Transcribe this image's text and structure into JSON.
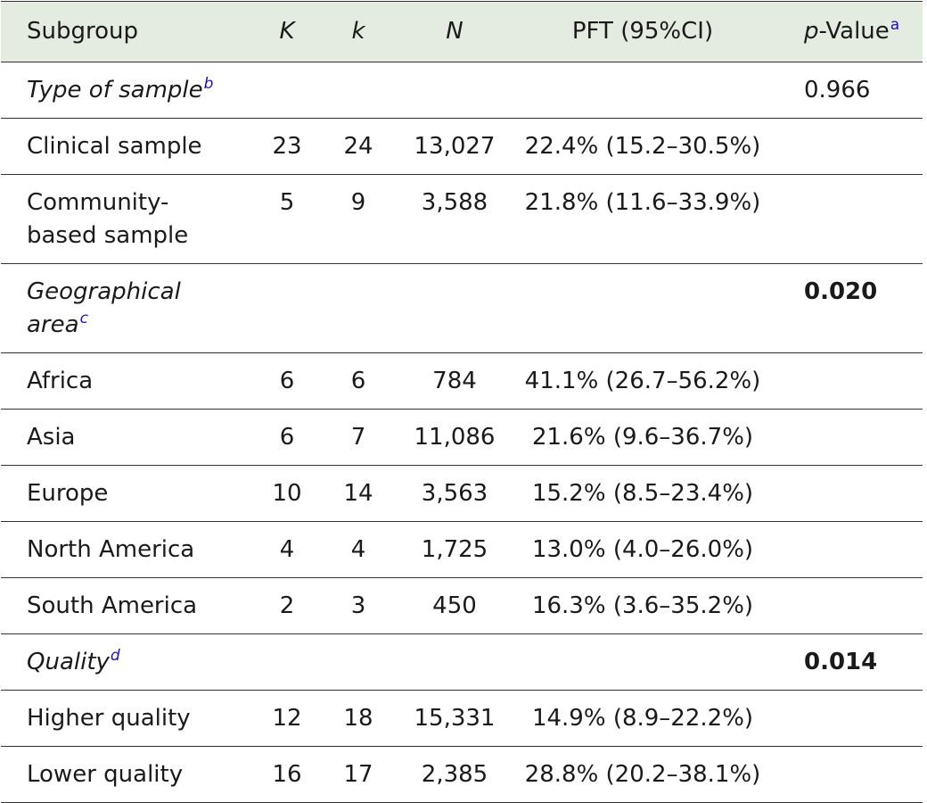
{
  "headers": {
    "subgroup": "Subgroup",
    "K": "K",
    "k": "k",
    "N": "N",
    "pft": "PFT (95%CI)",
    "p_italic": "p",
    "p_rest": "-Value",
    "p_sup": "a"
  },
  "sections": [
    {
      "title": "Type of sample",
      "sup": "b",
      "p_value": "0.966",
      "p_bold": false,
      "rows": [
        {
          "label": "Clinical sample",
          "K": "23",
          "k": "24",
          "N": "13,027",
          "pft": "22.4% (15.2–30.5%)"
        },
        {
          "label": "Community-based sample",
          "K": "5",
          "k": "9",
          "N": "3,588",
          "pft": "21.8% (11.6–33.9%)"
        }
      ]
    },
    {
      "title": "Geographical area",
      "sup": "c",
      "p_value": "0.020",
      "p_bold": true,
      "rows": [
        {
          "label": "Africa",
          "K": "6",
          "k": "6",
          "N": "784",
          "pft": "41.1% (26.7–56.2%)"
        },
        {
          "label": "Asia",
          "K": "6",
          "k": "7",
          "N": "11,086",
          "pft": "21.6% (9.6–36.7%)"
        },
        {
          "label": "Europe",
          "K": "10",
          "k": "14",
          "N": "3,563",
          "pft": "15.2% (8.5–23.4%)"
        },
        {
          "label": "North America",
          "K": "4",
          "k": "4",
          "N": "1,725",
          "pft": "13.0% (4.0–26.0%)"
        },
        {
          "label": "South America",
          "K": "2",
          "k": "3",
          "N": "450",
          "pft": "16.3% (3.6–35.2%)"
        }
      ]
    },
    {
      "title": "Quality",
      "sup": "d",
      "p_value": "0.014",
      "p_bold": true,
      "rows": [
        {
          "label": "Higher quality",
          "K": "12",
          "k": "18",
          "N": "15,331",
          "pft": "14.9% (8.9–22.2%)"
        },
        {
          "label": "Lower quality",
          "K": "16",
          "k": "17",
          "N": "2,385",
          "pft": "28.8% (20.2–38.1%)"
        }
      ]
    }
  ]
}
